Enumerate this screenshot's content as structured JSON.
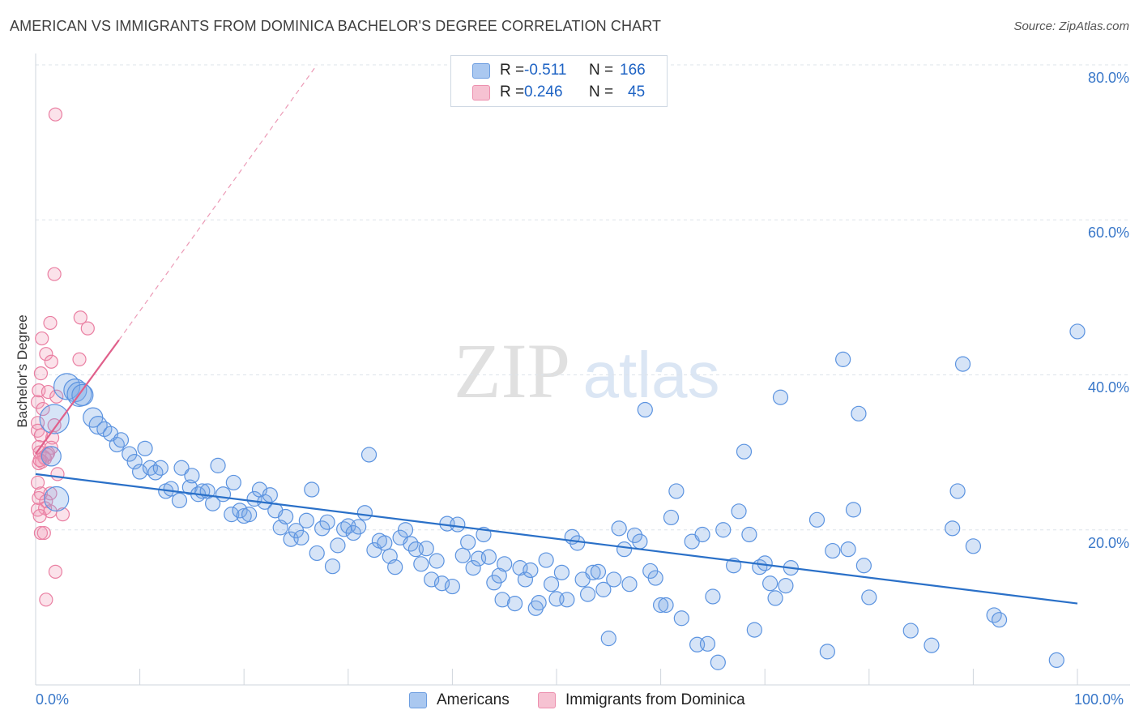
{
  "title": "AMERICAN VS IMMIGRANTS FROM DOMINICA BACHELOR'S DEGREE CORRELATION CHART",
  "source": "Source: ZipAtlas.com",
  "watermark": {
    "zip": "ZIP",
    "atlas": "atlas"
  },
  "legend": {
    "r_label": "R =",
    "n_label": "N =",
    "rows": [
      {
        "r": "-0.511",
        "n": "166",
        "color": "#aac8f0",
        "border": "#6d9ee0"
      },
      {
        "r": "0.246",
        "n": "45",
        "color": "#f6c2d2",
        "border": "#ec8fae"
      }
    ]
  },
  "bottom_legend": [
    "Americans",
    "Immigrants from Dominica"
  ],
  "colors": {
    "blue": "#5b93e0",
    "blue_fill": "rgba(120,165,230,0.30)",
    "blue_line": "#2a70c8",
    "pink": "#ea7fa2",
    "pink_fill": "rgba(240,150,180,0.28)",
    "pink_line": "#e0608b",
    "axis_text": "#3a78c9"
  },
  "chart_data": {
    "type": "scatter",
    "title": "AMERICAN VS IMMIGRANTS FROM DOMINICA BACHELOR'S DEGREE CORRELATION CHART",
    "xlabel": "",
    "ylabel": "Bachelor's Degree",
    "xlim": [
      0,
      100
    ],
    "ylim": [
      0,
      80
    ],
    "x_tick_labels": [
      "0.0%",
      "100.0%"
    ],
    "y_tick_labels": [
      "20.0%",
      "40.0%",
      "60.0%",
      "80.0%"
    ],
    "y_ticks": [
      20,
      40,
      60,
      80
    ],
    "grid": true,
    "series": [
      {
        "name": "Americans",
        "R": -0.511,
        "N": 166,
        "trend": [
          [
            0,
            27.2
          ],
          [
            100,
            10.5
          ]
        ],
        "points": [
          [
            1.5,
            29.5
          ],
          [
            2,
            24
          ],
          [
            1.8,
            34.3
          ],
          [
            3,
            38.5
          ],
          [
            3.8,
            38
          ],
          [
            4.2,
            37.5
          ],
          [
            4.5,
            37.4
          ],
          [
            5.5,
            34.5
          ],
          [
            6,
            33.5
          ],
          [
            6.6,
            33
          ],
          [
            7.2,
            32.4
          ],
          [
            7.8,
            31
          ],
          [
            8.2,
            31.6
          ],
          [
            9,
            29.8
          ],
          [
            9.5,
            28.8
          ],
          [
            10,
            27.5
          ],
          [
            10.5,
            30.5
          ],
          [
            11,
            28
          ],
          [
            11.5,
            27.4
          ],
          [
            12,
            28
          ],
          [
            12.5,
            25
          ],
          [
            13,
            25.3
          ],
          [
            13.8,
            23.8
          ],
          [
            14,
            28
          ],
          [
            14.8,
            25.5
          ],
          [
            15,
            27
          ],
          [
            15.6,
            24.6
          ],
          [
            16,
            25
          ],
          [
            16.5,
            25
          ],
          [
            17,
            23.4
          ],
          [
            17.5,
            28.3
          ],
          [
            18,
            24.6
          ],
          [
            18.8,
            22
          ],
          [
            19,
            26.1
          ],
          [
            19.6,
            22.5
          ],
          [
            20,
            21.8
          ],
          [
            20.5,
            22
          ],
          [
            21,
            24
          ],
          [
            21.5,
            25.2
          ],
          [
            22,
            23.6
          ],
          [
            22.5,
            24.5
          ],
          [
            23,
            22.5
          ],
          [
            23.5,
            20.3
          ],
          [
            24,
            21.7
          ],
          [
            24.5,
            18.8
          ],
          [
            25,
            19.9
          ],
          [
            25.5,
            19
          ],
          [
            26,
            21.2
          ],
          [
            26.5,
            25.2
          ],
          [
            27,
            17
          ],
          [
            27.5,
            20.2
          ],
          [
            28,
            21
          ],
          [
            28.5,
            15.3
          ],
          [
            29,
            18
          ],
          [
            29.6,
            20.1
          ],
          [
            30,
            20.5
          ],
          [
            30.5,
            19.6
          ],
          [
            31,
            20.4
          ],
          [
            31.6,
            22.2
          ],
          [
            32,
            29.7
          ],
          [
            32.5,
            17.4
          ],
          [
            33,
            18.6
          ],
          [
            33.5,
            18.3
          ],
          [
            34,
            16.6
          ],
          [
            34.5,
            15.2
          ],
          [
            35,
            19
          ],
          [
            35.5,
            20
          ],
          [
            36,
            18.2
          ],
          [
            36.5,
            17.5
          ],
          [
            37,
            15.6
          ],
          [
            37.5,
            17.6
          ],
          [
            38,
            13.6
          ],
          [
            38.5,
            16
          ],
          [
            39,
            13.1
          ],
          [
            39.5,
            20.8
          ],
          [
            40,
            12.7
          ],
          [
            40.5,
            20.7
          ],
          [
            41,
            16.7
          ],
          [
            41.5,
            18.4
          ],
          [
            42,
            15.1
          ],
          [
            42.5,
            16.3
          ],
          [
            43,
            19.4
          ],
          [
            43.5,
            16.5
          ],
          [
            44,
            13.2
          ],
          [
            44.5,
            14.1
          ],
          [
            44.8,
            11
          ],
          [
            45,
            15.6
          ],
          [
            46,
            10.5
          ],
          [
            46.5,
            15.1
          ],
          [
            47,
            13.6
          ],
          [
            47.5,
            14.8
          ],
          [
            48,
            9.9
          ],
          [
            48.3,
            10.6
          ],
          [
            49,
            16.1
          ],
          [
            49.5,
            13
          ],
          [
            50,
            11.1
          ],
          [
            50.5,
            14.5
          ],
          [
            51,
            11
          ],
          [
            51.5,
            19.1
          ],
          [
            52,
            18.3
          ],
          [
            52.5,
            13.6
          ],
          [
            53,
            11.7
          ],
          [
            53.5,
            14.5
          ],
          [
            54,
            14.6
          ],
          [
            54.5,
            12.3
          ],
          [
            55,
            6
          ],
          [
            55.5,
            13.6
          ],
          [
            56,
            20.2
          ],
          [
            56.5,
            17.5
          ],
          [
            57,
            13
          ],
          [
            57.5,
            19.3
          ],
          [
            58,
            18.5
          ],
          [
            58.5,
            35.5
          ],
          [
            59,
            14.7
          ],
          [
            59.5,
            13.8
          ],
          [
            60,
            10.3
          ],
          [
            60.5,
            10.3
          ],
          [
            61,
            21.6
          ],
          [
            61.5,
            25
          ],
          [
            62,
            8.6
          ],
          [
            63,
            18.5
          ],
          [
            63.5,
            5.2
          ],
          [
            64,
            19.4
          ],
          [
            64.5,
            5.3
          ],
          [
            65,
            11.4
          ],
          [
            65.5,
            2.9
          ],
          [
            66,
            20
          ],
          [
            67,
            15.4
          ],
          [
            67.5,
            22.4
          ],
          [
            68,
            30.1
          ],
          [
            68.5,
            19.4
          ],
          [
            69,
            7.1
          ],
          [
            69.5,
            15.2
          ],
          [
            70,
            15.7
          ],
          [
            70.5,
            13.1
          ],
          [
            71,
            11.2
          ],
          [
            71.5,
            37.1
          ],
          [
            72,
            12.8
          ],
          [
            72.5,
            15.1
          ],
          [
            75,
            21.3
          ],
          [
            76,
            4.3
          ],
          [
            77.5,
            42
          ],
          [
            78,
            17.5
          ],
          [
            78.5,
            22.6
          ],
          [
            79,
            35
          ],
          [
            79.5,
            15.4
          ],
          [
            80,
            11.3
          ],
          [
            84,
            7
          ],
          [
            86,
            5.1
          ],
          [
            88,
            20.2
          ],
          [
            88.5,
            25
          ],
          [
            89,
            41.4
          ],
          [
            90,
            17.9
          ],
          [
            92,
            9
          ],
          [
            92.5,
            8.4
          ],
          [
            98,
            3.2
          ],
          [
            100,
            45.6
          ],
          [
            76.5,
            17.3
          ]
        ]
      },
      {
        "name": "Immigrants from Dominica",
        "R": 0.246,
        "N": 45,
        "trend": [
          [
            0,
            29.8
          ],
          [
            8,
            44.5
          ]
        ],
        "trend_dashed": [
          [
            8,
            44.5
          ],
          [
            27,
            80
          ]
        ],
        "points": [
          [
            1.9,
            73.6
          ],
          [
            1.8,
            53
          ],
          [
            0.6,
            44.7
          ],
          [
            1.4,
            46.7
          ],
          [
            4.3,
            47.4
          ],
          [
            5,
            46
          ],
          [
            1,
            42.7
          ],
          [
            1.5,
            41.7
          ],
          [
            4.2,
            42
          ],
          [
            0.5,
            40.2
          ],
          [
            0.3,
            38
          ],
          [
            1.2,
            37.8
          ],
          [
            2,
            37.2
          ],
          [
            0.2,
            36.5
          ],
          [
            0.7,
            35.6
          ],
          [
            0.2,
            33.8
          ],
          [
            0.2,
            32.8
          ],
          [
            1.8,
            33.5
          ],
          [
            0.5,
            32.2
          ],
          [
            1.6,
            31.9
          ],
          [
            0.3,
            30.7
          ],
          [
            1.5,
            30.6
          ],
          [
            0.4,
            30
          ],
          [
            0.8,
            29.4
          ],
          [
            1.2,
            29.9
          ],
          [
            0.9,
            29.2
          ],
          [
            0.3,
            28.6
          ],
          [
            0.6,
            28.8
          ],
          [
            1.1,
            29.7
          ],
          [
            0.4,
            29
          ],
          [
            2.1,
            27.2
          ],
          [
            0.2,
            26.1
          ],
          [
            0.5,
            24.7
          ],
          [
            1.4,
            24.7
          ],
          [
            0.3,
            24.1
          ],
          [
            1,
            23.7
          ],
          [
            0.9,
            22.8
          ],
          [
            0.2,
            22.6
          ],
          [
            1.4,
            22.4
          ],
          [
            2.6,
            22
          ],
          [
            0.4,
            21.8
          ],
          [
            0.5,
            19.6
          ],
          [
            0.8,
            19.6
          ],
          [
            1.9,
            14.6
          ],
          [
            1,
            11
          ]
        ]
      }
    ]
  }
}
